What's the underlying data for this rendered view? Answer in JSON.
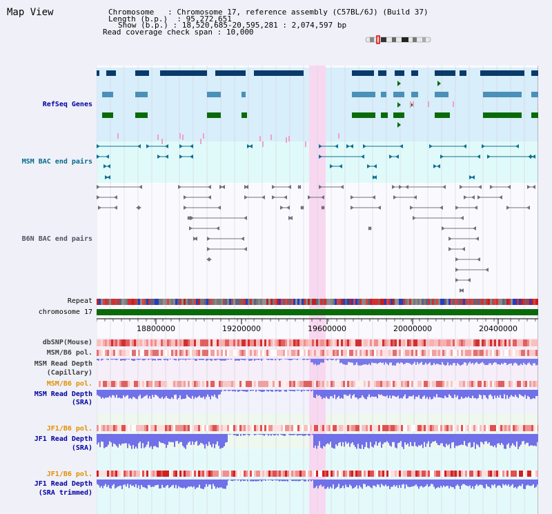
{
  "title": "Map View",
  "info": {
    "chromosome_label": "Chromosome",
    "chromosome_value": ": Chromosome 17, reference assembly (C57BL/6J) (Build 37)",
    "length_label": "Length (b.p.)",
    "length_value": ": 95,272,651",
    "show_label": "Show (b.p.)",
    "show_value": ": 18,520,685-20,595,281 : 2,074,597 bp",
    "coverage_label": "Read coverage check span",
    "coverage_value": ": 10,000"
  },
  "tracks": {
    "refseq": "RefSeq Genes",
    "msm_bac": "MSM BAC end pairs",
    "b6n_bac": "B6N BAC end pairs",
    "repeat": "Repeat",
    "chromosome": "chromosome 17",
    "dbsnp": "dbSNP(Mouse)",
    "msm_b6_pol_1": "MSM/B6 pol.",
    "msm_depth_cap_1": "MSM Read Depth",
    "msm_depth_cap_2": "(Capillary)",
    "msm_b6_pol_2": "MSM/B6 pol.",
    "msm_depth_sra_1": "MSM Read Depth",
    "msm_depth_sra_2": "(SRA)",
    "jf1_b6_pol_1": "JF1/B6 pol.",
    "jf1_depth_sra_1": "JF1 Read Depth",
    "jf1_depth_sra_2": "(SRA)",
    "jf1_b6_pol_2": "JF1/B6 pol.",
    "jf1_depth_trim_1": "JF1 Read Depth",
    "jf1_depth_trim_2": "(SRA trimmed)"
  },
  "axis": {
    "ticks": [
      "18800000",
      "19200000",
      "19600000",
      "20000000",
      "20400000"
    ]
  },
  "colors": {
    "refseq_bg": "#d8eefa",
    "bac_bg": "#e0fafa",
    "highlight": "#f8d8f0",
    "gene_dark": "#0a3a6a",
    "gene_mid": "#4a90b8",
    "gene_green": "#0a6a0a",
    "label_blue": "#0000a0",
    "label_teal": "#006a8a",
    "label_gray": "#505060",
    "label_orange": "#e09000",
    "depth_blue": "#7070e8"
  }
}
